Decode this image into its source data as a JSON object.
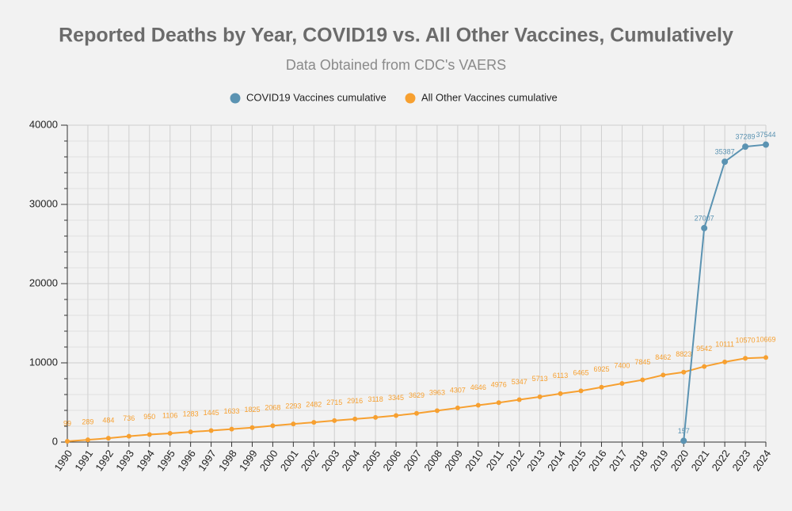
{
  "chart_data": {
    "type": "line",
    "title": "Reported Deaths by Year, COVID19 vs. All Other Vaccines, Cumulatively",
    "subtitle": "Data Obtained from CDC's VAERS",
    "categories": [
      "1990",
      "1991",
      "1992",
      "1993",
      "1994",
      "1995",
      "1996",
      "1997",
      "1998",
      "1999",
      "2000",
      "2001",
      "2002",
      "2003",
      "2004",
      "2005",
      "2006",
      "2007",
      "2008",
      "2009",
      "2010",
      "2011",
      "2012",
      "2013",
      "2014",
      "2015",
      "2016",
      "2017",
      "2018",
      "2019",
      "2020",
      "2021",
      "2022",
      "2023",
      "2024"
    ],
    "series": [
      {
        "name": "COVID19 Vaccines cumulative",
        "color": "#5b93b2",
        "values": [
          null,
          null,
          null,
          null,
          null,
          null,
          null,
          null,
          null,
          null,
          null,
          null,
          null,
          null,
          null,
          null,
          null,
          null,
          null,
          null,
          null,
          null,
          null,
          null,
          null,
          null,
          null,
          null,
          null,
          null,
          157,
          27007,
          35387,
          37289,
          37544
        ]
      },
      {
        "name": "All Other Vaccines cumulative",
        "color": "#f7a030",
        "values": [
          99,
          289,
          484,
          736,
          950,
          1106,
          1283,
          1445,
          1633,
          1825,
          2068,
          2293,
          2482,
          2715,
          2916,
          3118,
          3345,
          3629,
          3963,
          4307,
          4646,
          4976,
          5347,
          5713,
          6113,
          6465,
          6925,
          7400,
          7845,
          8462,
          8823,
          9542,
          10111,
          10570,
          10669
        ]
      }
    ],
    "ylim": [
      0,
      40000
    ],
    "yticks": [
      0,
      10000,
      20000,
      30000,
      40000
    ],
    "grid": true,
    "legend": "top"
  }
}
